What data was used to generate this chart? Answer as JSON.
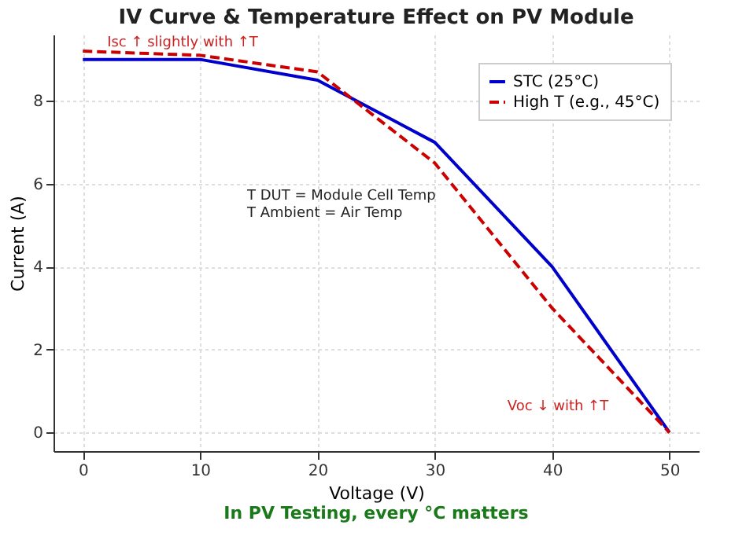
{
  "chart_data": {
    "type": "line",
    "title": "IV Curve & Temperature Effect on PV Module",
    "xlabel": "Voltage (V)",
    "ylabel": "Current (A)",
    "x": [
      0,
      10,
      20,
      30,
      40,
      50
    ],
    "series": [
      {
        "name": "STC (25°C)",
        "color": "#0000cc",
        "values": [
          9,
          9,
          8.5,
          7,
          4,
          0
        ],
        "line_style": "solid"
      },
      {
        "name": "High T (e.g., 45°C)",
        "color": "#cc0000",
        "values": [
          9.2,
          9.1,
          8.7,
          6.5,
          3,
          0
        ],
        "line_style": "dashed"
      }
    ],
    "xlim": [
      -2.5,
      52.5
    ],
    "xticks": [
      0,
      10,
      20,
      30,
      40,
      50
    ],
    "ylim": [
      -0.45,
      9.6
    ],
    "yticks": [
      0,
      2,
      4,
      6,
      8
    ],
    "grid": true,
    "legend": "top right",
    "marker": "none",
    "annotations": [
      "Isc ↑ slightly with ↑T",
      "Voc ↓ with ↑T",
      "T DUT = Module Cell Temp\nT Ambient = Air Temp",
      "In PV Testing, every °C matters"
    ]
  }
}
